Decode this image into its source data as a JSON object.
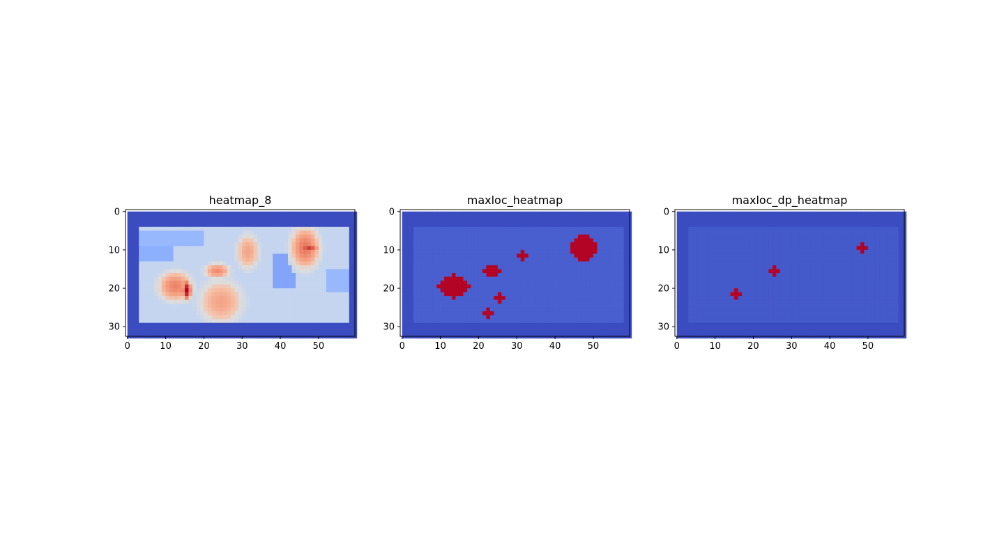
{
  "chart_data": [
    {
      "type": "heatmap",
      "title": "heatmap_8",
      "colormap": "coolwarm",
      "shape": [
        33,
        60
      ],
      "xlim": [
        -0.5,
        59.5
      ],
      "ylim": [
        32.5,
        -0.5
      ],
      "xticks": [
        0,
        10,
        20,
        30,
        40,
        50
      ],
      "yticks": [
        0,
        10,
        20,
        30
      ],
      "background": 0.0,
      "plateau": {
        "x0": 3,
        "x1": 57,
        "y0": 4,
        "y1": 28,
        "value": 0.42
      },
      "blobs": [
        {
          "cx": 12,
          "cy": 19,
          "rx": 4,
          "ry": 3.5,
          "value": 0.8
        },
        {
          "cx": 15,
          "cy": 20,
          "rx": 1.2,
          "ry": 2.5,
          "value": 1.0
        },
        {
          "cx": 24,
          "cy": 23,
          "rx": 5,
          "ry": 5,
          "value": 0.72
        },
        {
          "cx": 23,
          "cy": 15,
          "rx": 3,
          "ry": 1.8,
          "value": 0.78
        },
        {
          "cx": 31,
          "cy": 10,
          "rx": 2.5,
          "ry": 4,
          "value": 0.72
        },
        {
          "cx": 46,
          "cy": 9,
          "rx": 3.5,
          "ry": 5,
          "value": 0.82
        },
        {
          "cx": 47,
          "cy": 9,
          "rx": 2.5,
          "ry": 1.2,
          "value": 0.92
        }
      ],
      "cold_patches": [
        {
          "x0": 38,
          "x1": 43,
          "y0": 11,
          "y1": 19,
          "value": 0.22
        },
        {
          "x0": 3,
          "x1": 11,
          "y0": 9,
          "y1": 12,
          "value": 0.25
        },
        {
          "x0": 3,
          "x1": 19,
          "y0": 5,
          "y1": 8,
          "value": 0.28
        },
        {
          "x0": 52,
          "x1": 57,
          "y0": 15,
          "y1": 20,
          "value": 0.28
        }
      ]
    },
    {
      "type": "heatmap",
      "title": "maxloc_heatmap",
      "colormap": "coolwarm",
      "shape": [
        33,
        60
      ],
      "xlim": [
        -0.5,
        59.5
      ],
      "ylim": [
        32.5,
        -0.5
      ],
      "xticks": [
        0,
        10,
        20,
        30,
        40,
        50
      ],
      "yticks": [
        0,
        10,
        20,
        30
      ],
      "background": 0.0,
      "plateau": {
        "x0": 3,
        "x1": 57,
        "y0": 4,
        "y1": 28,
        "value": 0.045
      },
      "maxima": [
        {
          "x": 13,
          "y": 19,
          "rx": 4,
          "ry": 3,
          "value": 1.0
        },
        {
          "x": 23,
          "y": 15,
          "rx": 2.5,
          "ry": 1.2,
          "value": 1.0
        },
        {
          "x": 31,
          "y": 11,
          "rx": 1.5,
          "ry": 1.0,
          "value": 1.0
        },
        {
          "x": 47,
          "y": 9,
          "rx": 3.5,
          "ry": 3.5,
          "value": 1.0
        },
        {
          "x": 25,
          "y": 22,
          "rx": 1.2,
          "ry": 1.2,
          "value": 1.0
        },
        {
          "x": 22,
          "y": 26,
          "rx": 1.2,
          "ry": 1.2,
          "value": 1.0
        }
      ]
    },
    {
      "type": "heatmap",
      "title": "maxloc_dp_heatmap",
      "colormap": "coolwarm",
      "shape": [
        33,
        60
      ],
      "xlim": [
        -0.5,
        59.5
      ],
      "ylim": [
        32.5,
        -0.5
      ],
      "xticks": [
        0,
        10,
        20,
        30,
        40,
        50
      ],
      "yticks": [
        0,
        10,
        20,
        30
      ],
      "background": 0.0,
      "plateau": {
        "x0": 3,
        "x1": 57,
        "y0": 4,
        "y1": 28,
        "value": 0.03
      },
      "maxima": [
        {
          "x": 15,
          "y": 21,
          "rx": 1.2,
          "ry": 1.2,
          "value": 1.0
        },
        {
          "x": 25,
          "y": 15,
          "rx": 1.2,
          "ry": 1.2,
          "value": 1.0
        },
        {
          "x": 48,
          "y": 9,
          "rx": 1.2,
          "ry": 1.2,
          "value": 1.0
        }
      ]
    }
  ]
}
